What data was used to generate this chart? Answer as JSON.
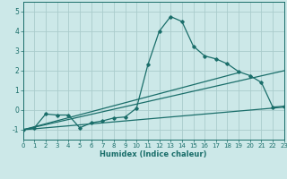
{
  "xlabel": "Humidex (Indice chaleur)",
  "xlim": [
    0,
    23
  ],
  "ylim": [
    -1.5,
    5.5
  ],
  "yticks": [
    -1,
    0,
    1,
    2,
    3,
    4,
    5
  ],
  "xticks": [
    0,
    1,
    2,
    3,
    4,
    5,
    6,
    7,
    8,
    9,
    10,
    11,
    12,
    13,
    14,
    15,
    16,
    17,
    18,
    19,
    20,
    21,
    22,
    23
  ],
  "bg_color": "#cce8e8",
  "grid_color": "#aacccc",
  "line_color": "#1a6e6a",
  "line1_x": [
    0,
    1,
    2,
    3,
    4,
    5,
    6,
    7,
    8,
    9,
    10,
    11,
    12,
    13,
    14,
    15,
    16,
    17,
    18,
    19,
    20,
    21,
    22,
    23
  ],
  "line1_y": [
    -1.0,
    -0.9,
    -0.2,
    -0.25,
    -0.25,
    -0.9,
    -0.65,
    -0.55,
    -0.4,
    -0.35,
    0.1,
    2.3,
    4.0,
    4.75,
    4.5,
    3.25,
    2.75,
    2.6,
    2.35,
    1.95,
    1.75,
    1.4,
    0.15,
    0.2
  ],
  "line2_x": [
    0,
    23
  ],
  "line2_y": [
    -1.0,
    0.15
  ],
  "line3_x": [
    0,
    19
  ],
  "line3_y": [
    -1.0,
    1.9
  ],
  "line4_x": [
    0,
    23
  ],
  "line4_y": [
    -1.0,
    2.0
  ],
  "xlabel_fontsize": 6,
  "tick_fontsize": 5
}
